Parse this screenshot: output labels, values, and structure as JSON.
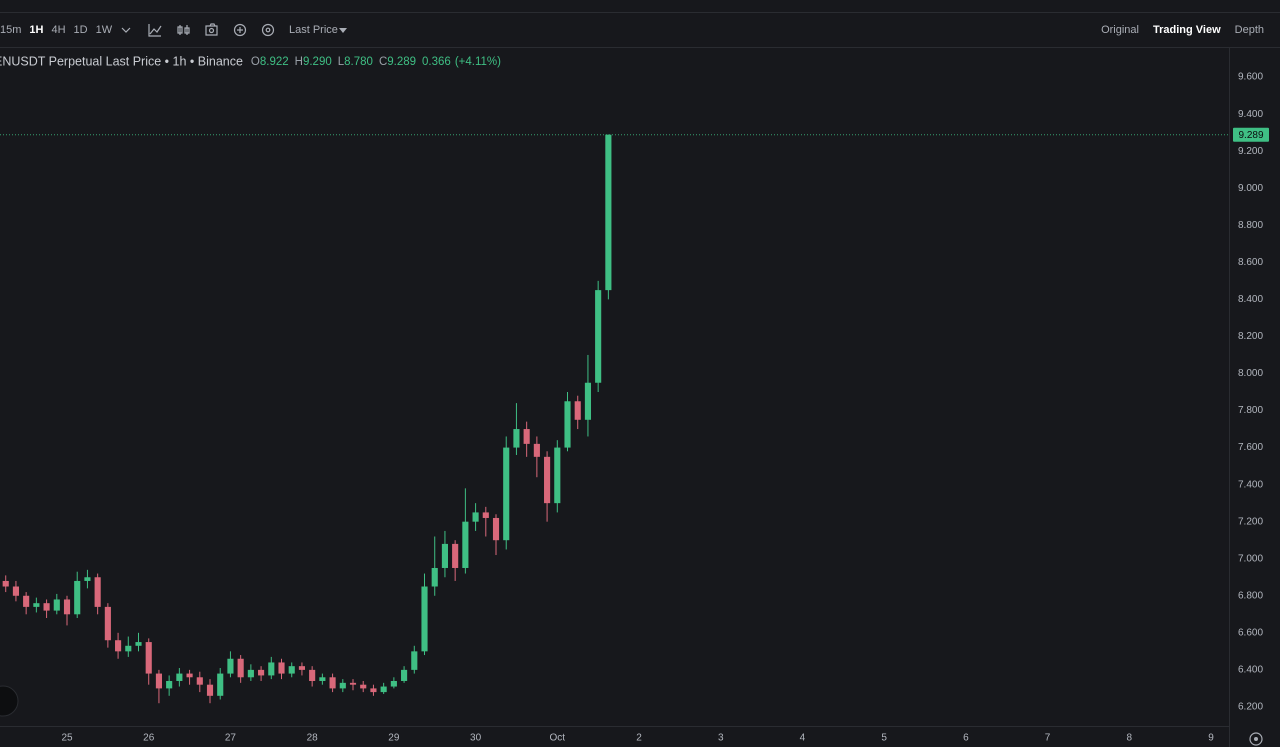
{
  "toolbar": {
    "intervals": [
      "15m",
      "1H",
      "4H",
      "1D",
      "1W"
    ],
    "price_mode": "Last Price",
    "views": [
      "Original",
      "Trading View",
      "Depth"
    ]
  },
  "chart_data": {
    "type": "candlestick",
    "title": "ENUSDT Perpetual Last Price • 1h • Binance",
    "ohlc_legend": [
      {
        "key": "O",
        "value": "8.922"
      },
      {
        "key": "H",
        "value": "9.290"
      },
      {
        "key": "L",
        "value": "8.780"
      },
      {
        "key": "C",
        "value": "9.289"
      }
    ],
    "change": "0.366",
    "change_pct": "(+4.11%)",
    "up_color": "#3fbf84",
    "down_color": "#d9687a",
    "x": [
      24.25,
      24.375,
      24.5,
      24.625,
      24.75,
      24.875,
      25,
      25.125,
      25.25,
      25.375,
      25.5,
      25.625,
      25.75,
      25.875,
      26,
      26.125,
      26.25,
      26.375,
      26.5,
      26.625,
      26.75,
      26.875,
      27,
      27.125,
      27.25,
      27.375,
      27.5,
      27.625,
      27.75,
      27.875,
      28,
      28.125,
      28.25,
      28.375,
      28.5,
      28.625,
      28.75,
      28.875,
      29,
      29.125,
      29.25,
      29.375,
      29.5,
      29.625,
      29.75,
      29.875,
      30,
      30.125,
      30.25,
      30.375,
      30.5,
      30.625,
      30.75,
      30.875,
      31,
      31.125,
      31.25,
      31.375,
      31.5,
      31.625
    ],
    "open": [
      6.88,
      6.85,
      6.8,
      6.74,
      6.76,
      6.72,
      6.78,
      6.7,
      6.88,
      6.9,
      6.74,
      6.56,
      6.5,
      6.53,
      6.55,
      6.38,
      6.3,
      6.34,
      6.38,
      6.36,
      6.32,
      6.26,
      6.38,
      6.46,
      6.36,
      6.4,
      6.37,
      6.44,
      6.38,
      6.42,
      6.4,
      6.34,
      6.36,
      6.3,
      6.33,
      6.32,
      6.3,
      6.28,
      6.31,
      6.34,
      6.4,
      6.5,
      6.85,
      6.95,
      7.08,
      6.95,
      7.2,
      7.25,
      7.22,
      7.1,
      7.6,
      7.7,
      7.62,
      7.55,
      7.3,
      7.6,
      7.85,
      7.75,
      7.95,
      8.45
    ],
    "high": [
      6.91,
      6.88,
      6.82,
      6.79,
      6.78,
      6.81,
      6.8,
      6.93,
      6.94,
      6.92,
      6.76,
      6.6,
      6.58,
      6.6,
      6.57,
      6.4,
      6.37,
      6.41,
      6.4,
      6.39,
      6.35,
      6.41,
      6.5,
      6.48,
      6.43,
      6.42,
      6.47,
      6.46,
      6.44,
      6.44,
      6.42,
      6.38,
      6.38,
      6.35,
      6.35,
      6.34,
      6.32,
      6.33,
      6.36,
      6.42,
      6.53,
      6.92,
      7.12,
      7.15,
      7.1,
      7.38,
      7.3,
      7.28,
      7.24,
      7.66,
      7.84,
      7.74,
      7.66,
      7.58,
      7.64,
      7.9,
      7.88,
      8.1,
      8.5,
      9.29
    ],
    "low": [
      6.82,
      6.77,
      6.7,
      6.71,
      6.68,
      6.7,
      6.64,
      6.68,
      6.84,
      6.7,
      6.52,
      6.46,
      6.47,
      6.5,
      6.32,
      6.22,
      6.26,
      6.31,
      6.32,
      6.28,
      6.22,
      6.24,
      6.36,
      6.33,
      6.34,
      6.34,
      6.35,
      6.35,
      6.36,
      6.37,
      6.31,
      6.32,
      6.28,
      6.28,
      6.29,
      6.28,
      6.26,
      6.27,
      6.3,
      6.33,
      6.38,
      6.48,
      6.8,
      6.9,
      6.88,
      6.92,
      7.15,
      7.12,
      7.02,
      7.05,
      7.56,
      7.55,
      7.44,
      7.2,
      7.25,
      7.58,
      7.7,
      7.66,
      7.9,
      8.4
    ],
    "close": [
      6.85,
      6.8,
      6.74,
      6.76,
      6.72,
      6.78,
      6.7,
      6.88,
      6.9,
      6.74,
      6.56,
      6.5,
      6.53,
      6.55,
      6.38,
      6.3,
      6.34,
      6.38,
      6.36,
      6.32,
      6.26,
      6.38,
      6.46,
      6.36,
      6.4,
      6.37,
      6.44,
      6.38,
      6.42,
      6.4,
      6.34,
      6.36,
      6.3,
      6.33,
      6.32,
      6.3,
      6.28,
      6.31,
      6.34,
      6.4,
      6.5,
      6.85,
      6.95,
      7.08,
      6.95,
      7.2,
      7.25,
      7.22,
      7.1,
      7.6,
      7.7,
      7.62,
      7.55,
      7.3,
      7.6,
      7.85,
      7.75,
      7.95,
      8.45,
      9.289
    ],
    "xlim": [
      24.18,
      39.22
    ],
    "xticks": [
      {
        "value": 25,
        "label": "25"
      },
      {
        "value": 26,
        "label": "26"
      },
      {
        "value": 27,
        "label": "27"
      },
      {
        "value": 28,
        "label": "28"
      },
      {
        "value": 29,
        "label": "29"
      },
      {
        "value": 30,
        "label": "30"
      },
      {
        "value": 31,
        "label": "Oct"
      },
      {
        "value": 32,
        "label": "2"
      },
      {
        "value": 33,
        "label": "3"
      },
      {
        "value": 34,
        "label": "4"
      },
      {
        "value": 35,
        "label": "5"
      },
      {
        "value": 36,
        "label": "6"
      },
      {
        "value": 37,
        "label": "7"
      },
      {
        "value": 38,
        "label": "8"
      },
      {
        "value": 39,
        "label": "9"
      }
    ],
    "ylim": [
      6.097,
      9.757
    ],
    "yticks": [
      {
        "value": 6.2,
        "label": "6.200"
      },
      {
        "value": 6.4,
        "label": "6.400"
      },
      {
        "value": 6.6,
        "label": "6.600"
      },
      {
        "value": 6.8,
        "label": "6.800"
      },
      {
        "value": 7.0,
        "label": "7.000"
      },
      {
        "value": 7.2,
        "label": "7.200"
      },
      {
        "value": 7.4,
        "label": "7.400"
      },
      {
        "value": 7.6,
        "label": "7.600"
      },
      {
        "value": 7.8,
        "label": "7.800"
      },
      {
        "value": 8.0,
        "label": "8.000"
      },
      {
        "value": 8.2,
        "label": "8.200"
      },
      {
        "value": 8.4,
        "label": "8.400"
      },
      {
        "value": 8.6,
        "label": "8.600"
      },
      {
        "value": 8.8,
        "label": "8.800"
      },
      {
        "value": 9.0,
        "label": "9.000"
      },
      {
        "value": 9.2,
        "label": "9.200"
      },
      {
        "value": 9.4,
        "label": "9.400"
      },
      {
        "value": 9.6,
        "label": "9.600"
      }
    ],
    "grid": false
  }
}
